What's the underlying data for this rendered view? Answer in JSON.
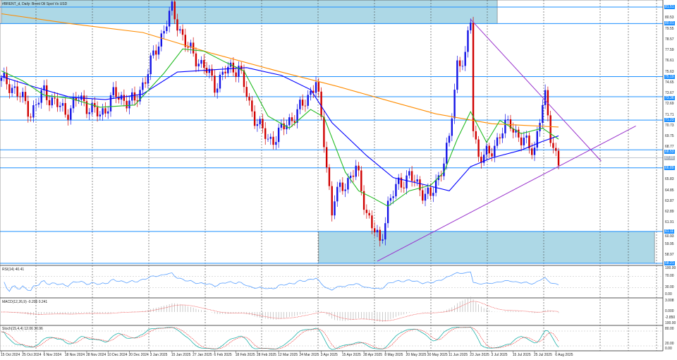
{
  "header": {
    "title": "#BRENT_d, Daily:  Brent Oil Spot Vs USD"
  },
  "indicators": {
    "rsi_label": "RSI(14) 40.41",
    "macd_label": "MACD(12,26,9) -0.206 0.241",
    "stoch_label": "Stoch(15,4,4) 12.06 30.96",
    "rsi_axis": [
      "100.00",
      "70.00",
      "30.00",
      "0.00"
    ],
    "macd_axis": [
      "3.008",
      "0.000",
      "-2.850"
    ],
    "stoch_axis": [
      "100.00",
      "80.00",
      "20.00",
      "0.00"
    ]
  },
  "colors": {
    "bull": "#1414e6",
    "bear": "#d00000",
    "level": "#1e90ff",
    "zone": "#add8e6",
    "ma200": "#ff8c00",
    "ma50": "#0000ff",
    "ma20": "#22bb22",
    "trend": "#9932cc"
  },
  "chart_data": {
    "type": "candlestick",
    "title": "#BRENT_d, Daily: Brent Oil Spot Vs USD",
    "x_unit": "trading days since 15 Oct 2024",
    "ylim": [
      58.21,
      81.51
    ],
    "close_anchors": [
      [
        0,
        74.8
      ],
      [
        5,
        74.1
      ],
      [
        11,
        71.9
      ],
      [
        16,
        73.8
      ],
      [
        24,
        71.9
      ],
      [
        29,
        73.2
      ],
      [
        37,
        71.6
      ],
      [
        42,
        73.5
      ],
      [
        50,
        72.8
      ],
      [
        55,
        75.7
      ],
      [
        62,
        80.2
      ],
      [
        64,
        81.2
      ],
      [
        70,
        77.7
      ],
      [
        76,
        76.1
      ],
      [
        80,
        74.4
      ],
      [
        84,
        75.7
      ],
      [
        89,
        76.1
      ],
      [
        93,
        72.5
      ],
      [
        100,
        69.3
      ],
      [
        104,
        70.0
      ],
      [
        108,
        71.2
      ],
      [
        113,
        72.5
      ],
      [
        118,
        74.8
      ],
      [
        121,
        69.3
      ],
      [
        124,
        62.9
      ],
      [
        125,
        64.2
      ],
      [
        129,
        65.5
      ],
      [
        133,
        66.8
      ],
      [
        137,
        62.9
      ],
      [
        139,
        61.6
      ],
      [
        142,
        60.0
      ],
      [
        145,
        63.5
      ],
      [
        149,
        65.5
      ],
      [
        153,
        66.1
      ],
      [
        158,
        64.8
      ],
      [
        161,
        64.2
      ],
      [
        164,
        66.1
      ],
      [
        168,
        69.3
      ],
      [
        171,
        76.4
      ],
      [
        174,
        77.0
      ],
      [
        176,
        80.2
      ],
      [
        177,
        70.6
      ],
      [
        179,
        68.0
      ],
      [
        183,
        68.0
      ],
      [
        187,
        70.0
      ],
      [
        191,
        71.0
      ],
      [
        195,
        69.3
      ],
      [
        200,
        68.7
      ],
      [
        203,
        72.5
      ],
      [
        204,
        73.2
      ],
      [
        206,
        70.0
      ],
      [
        208,
        68.0
      ],
      [
        209,
        67.1
      ]
    ],
    "ma200": [
      [
        0,
        80.9
      ],
      [
        26,
        80.0
      ],
      [
        53,
        79.2
      ],
      [
        79,
        77.3
      ],
      [
        105,
        75.6
      ],
      [
        126,
        74.3
      ],
      [
        145,
        73.0
      ],
      [
        163,
        71.8
      ],
      [
        184,
        70.9
      ],
      [
        209,
        70.6
      ]
    ],
    "ma50": [
      [
        0,
        75.2
      ],
      [
        13,
        74.2
      ],
      [
        26,
        73.3
      ],
      [
        39,
        73.1
      ],
      [
        53,
        73.6
      ],
      [
        66,
        75.6
      ],
      [
        79,
        75.8
      ],
      [
        92,
        76.0
      ],
      [
        105,
        75.3
      ],
      [
        116,
        74.0
      ],
      [
        124,
        71.0
      ],
      [
        137,
        68.0
      ],
      [
        147,
        66.0
      ],
      [
        158,
        65.4
      ],
      [
        168,
        64.8
      ],
      [
        176,
        67.0
      ],
      [
        184,
        67.8
      ],
      [
        195,
        68.5
      ],
      [
        203,
        69.3
      ],
      [
        209,
        69.8
      ]
    ],
    "ma20": [
      [
        0,
        75.7
      ],
      [
        8,
        74.8
      ],
      [
        16,
        73.5
      ],
      [
        26,
        73.2
      ],
      [
        37,
        72.4
      ],
      [
        50,
        72.6
      ],
      [
        61,
        75.5
      ],
      [
        68,
        77.7
      ],
      [
        76,
        77.5
      ],
      [
        84,
        76.5
      ],
      [
        91,
        75.7
      ],
      [
        100,
        71.6
      ],
      [
        108,
        70.5
      ],
      [
        116,
        72.2
      ],
      [
        121,
        71.5
      ],
      [
        129,
        66.5
      ],
      [
        134,
        64.8
      ],
      [
        139,
        64.2
      ],
      [
        145,
        63.4
      ],
      [
        153,
        64.8
      ],
      [
        161,
        65.3
      ],
      [
        166,
        66.5
      ],
      [
        171,
        69.5
      ],
      [
        176,
        72.0
      ],
      [
        182,
        69.2
      ],
      [
        187,
        71.2
      ],
      [
        195,
        70.0
      ],
      [
        203,
        70.5
      ],
      [
        209,
        69.5
      ]
    ],
    "levels": [
      81.51,
      80.01,
      75.19,
      73.36,
      71.23,
      68.53,
      66.89,
      61.11,
      58.21
    ],
    "gray_level": 67.8,
    "zones": [
      {
        "from": 0,
        "to": 186,
        "low": 80.01,
        "high": 82.2
      },
      {
        "from": 119,
        "to": 245,
        "low": 58.21,
        "high": 61.11
      }
    ],
    "trendlines": [
      {
        "x1": 176,
        "p1": 80.4,
        "x2": 225,
        "p2": 67.5
      },
      {
        "x1": 141,
        "p1": 58.4,
        "x2": 238,
        "p2": 70.7
      }
    ],
    "price_axis": [
      {
        "v": 81.51,
        "t": "81.51",
        "hl": true
      },
      {
        "v": 80.53,
        "t": "80.53"
      },
      {
        "v": 80.01,
        "t": "80.01",
        "hl": true
      },
      {
        "v": 79.55,
        "t": "79.55"
      },
      {
        "v": 78.57,
        "t": "78.57"
      },
      {
        "v": 77.59,
        "t": "77.59"
      },
      {
        "v": 76.61,
        "t": "76.61"
      },
      {
        "v": 75.63,
        "t": "75.63"
      },
      {
        "v": 75.19,
        "t": "75.19",
        "hl": true
      },
      {
        "v": 74.65,
        "t": "74.65"
      },
      {
        "v": 73.67,
        "t": "73.67"
      },
      {
        "v": 73.36,
        "t": "73.36",
        "hl": true
      },
      {
        "v": 72.69,
        "t": "72.69"
      },
      {
        "v": 71.71,
        "t": "71.71"
      },
      {
        "v": 71.23,
        "t": "71.23",
        "hl": true
      },
      {
        "v": 70.73,
        "t": "70.73"
      },
      {
        "v": 69.75,
        "t": "69.75"
      },
      {
        "v": 68.77,
        "t": "68.77"
      },
      {
        "v": 68.53,
        "t": "68.53",
        "hl": true
      },
      {
        "v": 67.8,
        "t": "67.80",
        "gray": true
      },
      {
        "v": 66.89,
        "t": "66.89",
        "hl": true
      },
      {
        "v": 65.83,
        "t": "65.83"
      },
      {
        "v": 64.85,
        "t": "64.85"
      },
      {
        "v": 63.87,
        "t": "63.87"
      },
      {
        "v": 62.89,
        "t": "62.89"
      },
      {
        "v": 61.91,
        "t": "61.91"
      },
      {
        "v": 61.11,
        "t": "61.11",
        "hl": true
      },
      {
        "v": 60.93,
        "t": "60.93"
      },
      {
        "v": 59.95,
        "t": "59.95"
      },
      {
        "v": 58.97,
        "t": "58.97"
      },
      {
        "v": 58.21,
        "t": "58.21",
        "hl": true
      }
    ],
    "date_labels": [
      {
        "i": 0,
        "t": "15 Oct 2024"
      },
      {
        "i": 8,
        "t": "25 Oct 2024"
      },
      {
        "i": 16,
        "t": "6 Nov 2024"
      },
      {
        "i": 24,
        "t": "18 Nov 2024"
      },
      {
        "i": 32,
        "t": "28 Nov 2024"
      },
      {
        "i": 40,
        "t": "10 Dec 2024"
      },
      {
        "i": 48,
        "t": "20 Dec 2024"
      },
      {
        "i": 56,
        "t": "3 Jan 2025"
      },
      {
        "i": 64,
        "t": "15 Jan 2025"
      },
      {
        "i": 72,
        "t": "27 Jan 2025"
      },
      {
        "i": 80,
        "t": "6 Feb 2025"
      },
      {
        "i": 88,
        "t": "18 Feb 2025"
      },
      {
        "i": 96,
        "t": "28 Feb 2025"
      },
      {
        "i": 104,
        "t": "12 Mar 2025"
      },
      {
        "i": 112,
        "t": "24 Mar 2025"
      },
      {
        "i": 120,
        "t": "3 Apr 2025"
      },
      {
        "i": 128,
        "t": "15 Apr 2025"
      },
      {
        "i": 136,
        "t": "28 Apr 2025"
      },
      {
        "i": 144,
        "t": "8 May 2025"
      },
      {
        "i": 152,
        "t": "20 May 2025"
      },
      {
        "i": 160,
        "t": "30 May 2025"
      },
      {
        "i": 168,
        "t": "11 Jun 2025"
      },
      {
        "i": 176,
        "t": "23 Jun 2025"
      },
      {
        "i": 184,
        "t": "3 Jul 2025"
      },
      {
        "i": 192,
        "t": "15 Jul 2025"
      },
      {
        "i": 200,
        "t": "25 Jul 2025"
      },
      {
        "i": 208,
        "t": "6 Aug 2025"
      }
    ]
  }
}
